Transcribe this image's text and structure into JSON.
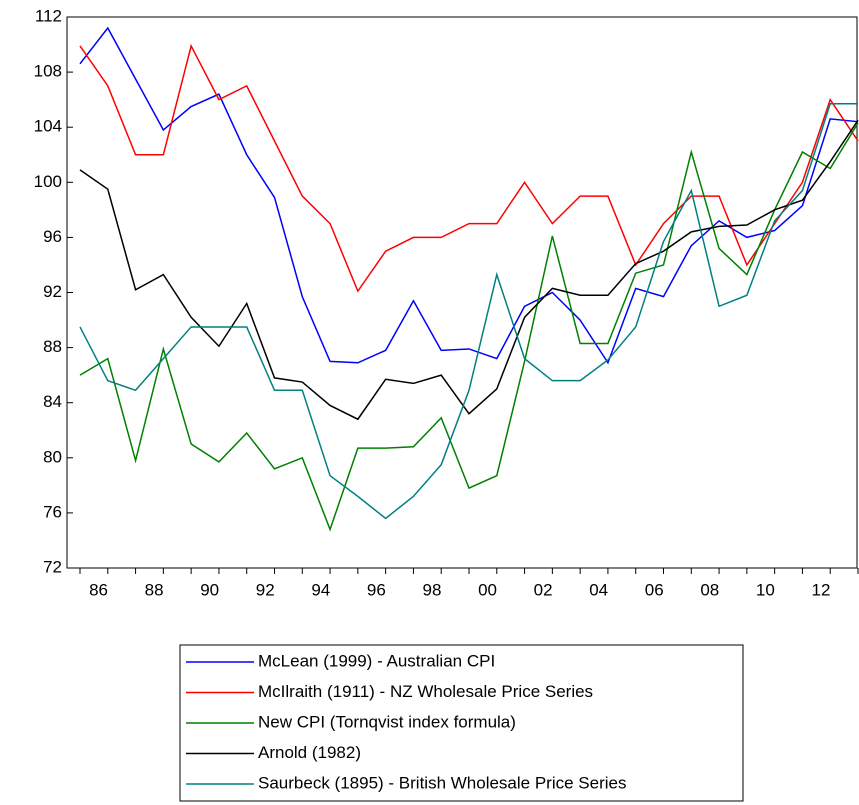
{
  "chart_data": {
    "type": "line",
    "categories": [
      null,
      "86",
      null,
      "88",
      null,
      "90",
      null,
      "92",
      null,
      "94",
      null,
      "96",
      null,
      "98",
      null,
      "00",
      null,
      "02",
      null,
      "04",
      null,
      "06",
      null,
      "08",
      null,
      "10",
      null,
      "12",
      null
    ],
    "ylim": [
      72,
      112
    ],
    "yticks": [
      72,
      76,
      80,
      84,
      88,
      92,
      96,
      100,
      104,
      108,
      112
    ],
    "series": [
      {
        "name": "McLean (1999) - Australian CPI",
        "color": "#0000ff",
        "values": [
          108.6,
          111.2,
          107.5,
          103.8,
          105.5,
          106.4,
          102,
          98.9,
          91.7,
          87,
          86.9,
          87.8,
          91.4,
          87.8,
          87.9,
          87.2,
          91,
          92,
          90,
          86.9,
          92.3,
          91.7,
          95.4,
          97.2,
          96,
          96.5,
          98.3,
          104.6,
          104.4
        ]
      },
      {
        "name": "McIlraith (1911) - NZ Wholesale Price Series",
        "color": "#ff0000",
        "values": [
          109.9,
          107,
          102,
          102,
          109.9,
          106,
          107,
          103,
          99,
          97,
          92.1,
          95,
          96,
          96,
          97,
          97,
          100,
          97,
          99,
          99,
          94,
          97,
          99,
          99,
          94,
          97,
          100,
          106,
          103
        ]
      },
      {
        "name": "New CPI (Tornqvist index formula)",
        "color": "#008000",
        "values": [
          86,
          87.2,
          79.8,
          87.9,
          81,
          79.7,
          81.8,
          79.2,
          80,
          74.8,
          80.7,
          80.7,
          80.8,
          82.9,
          77.8,
          78.7,
          87,
          96.1,
          88.3,
          88.3,
          93.4,
          94,
          102.2,
          95.2,
          93.3,
          98,
          102.2,
          101,
          104.3
        ]
      },
      {
        "name": "Arnold (1982)",
        "color": "#000000",
        "values": [
          100.9,
          99.5,
          92.2,
          93.3,
          90.2,
          88.1,
          91.2,
          85.8,
          85.5,
          83.8,
          82.8,
          85.7,
          85.4,
          86,
          83.2,
          85,
          90.2,
          92.3,
          91.8,
          91.8,
          94.1,
          95,
          96.4,
          96.8,
          96.9,
          98,
          98.7,
          101.5,
          104.5
        ]
      },
      {
        "name": "Saurbeck (1895) - British Wholesale Price Series",
        "color": "#008080",
        "values": [
          89.5,
          85.6,
          84.9,
          87.2,
          89.5,
          89.5,
          89.5,
          84.9,
          84.9,
          78.7,
          77.2,
          75.6,
          77.2,
          79.5,
          84.9,
          93.3,
          87.2,
          85.6,
          85.6,
          87.1,
          89.5,
          95.7,
          99.4,
          91,
          91.8,
          97.2,
          99.4,
          105.7,
          105.7
        ]
      }
    ]
  }
}
